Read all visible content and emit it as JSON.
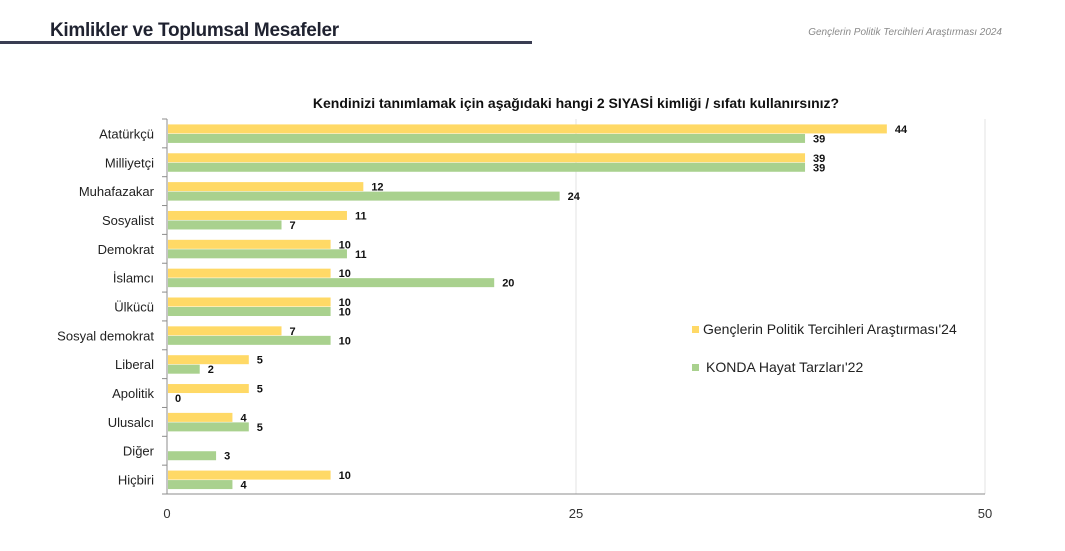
{
  "header": {
    "section_title": "Kimlikler ve Toplumsal Mesafeler",
    "report_name": "Gençlerin Politik Tercihleri Araştırması 2024"
  },
  "chart_data": {
    "type": "bar",
    "orientation": "horizontal",
    "title": "Kendinizi tanımlamak için aşağıdaki hangi 2 SIYASİ kimliği / sıfatı kullanırsınız?",
    "categories": [
      "Atatürkçü",
      "Milliyetçi",
      "Muhafazakar",
      "Sosyalist",
      "Demokrat",
      "İslamcı",
      "Ülkücü",
      "Sosyal demokrat",
      "Liberal",
      "Apolitik",
      "Ulusalcı",
      "Diğer",
      "Hiçbiri"
    ],
    "series": [
      {
        "name": "Gençlerin Politik Tercihleri Araştırması'24",
        "color": "#ffd966",
        "values": [
          44,
          39,
          12,
          11,
          10,
          10,
          10,
          7,
          5,
          5,
          4,
          null,
          10
        ]
      },
      {
        "name": "KONDA Hayat Tarzları'22",
        "color": "#a9d18e",
        "values": [
          39,
          39,
          24,
          7,
          11,
          20,
          10,
          10,
          2,
          0,
          5,
          3,
          4
        ]
      }
    ],
    "xlim": [
      0,
      50
    ],
    "xticks": [
      0,
      25,
      50
    ],
    "grid": true,
    "legend_position": "right"
  }
}
